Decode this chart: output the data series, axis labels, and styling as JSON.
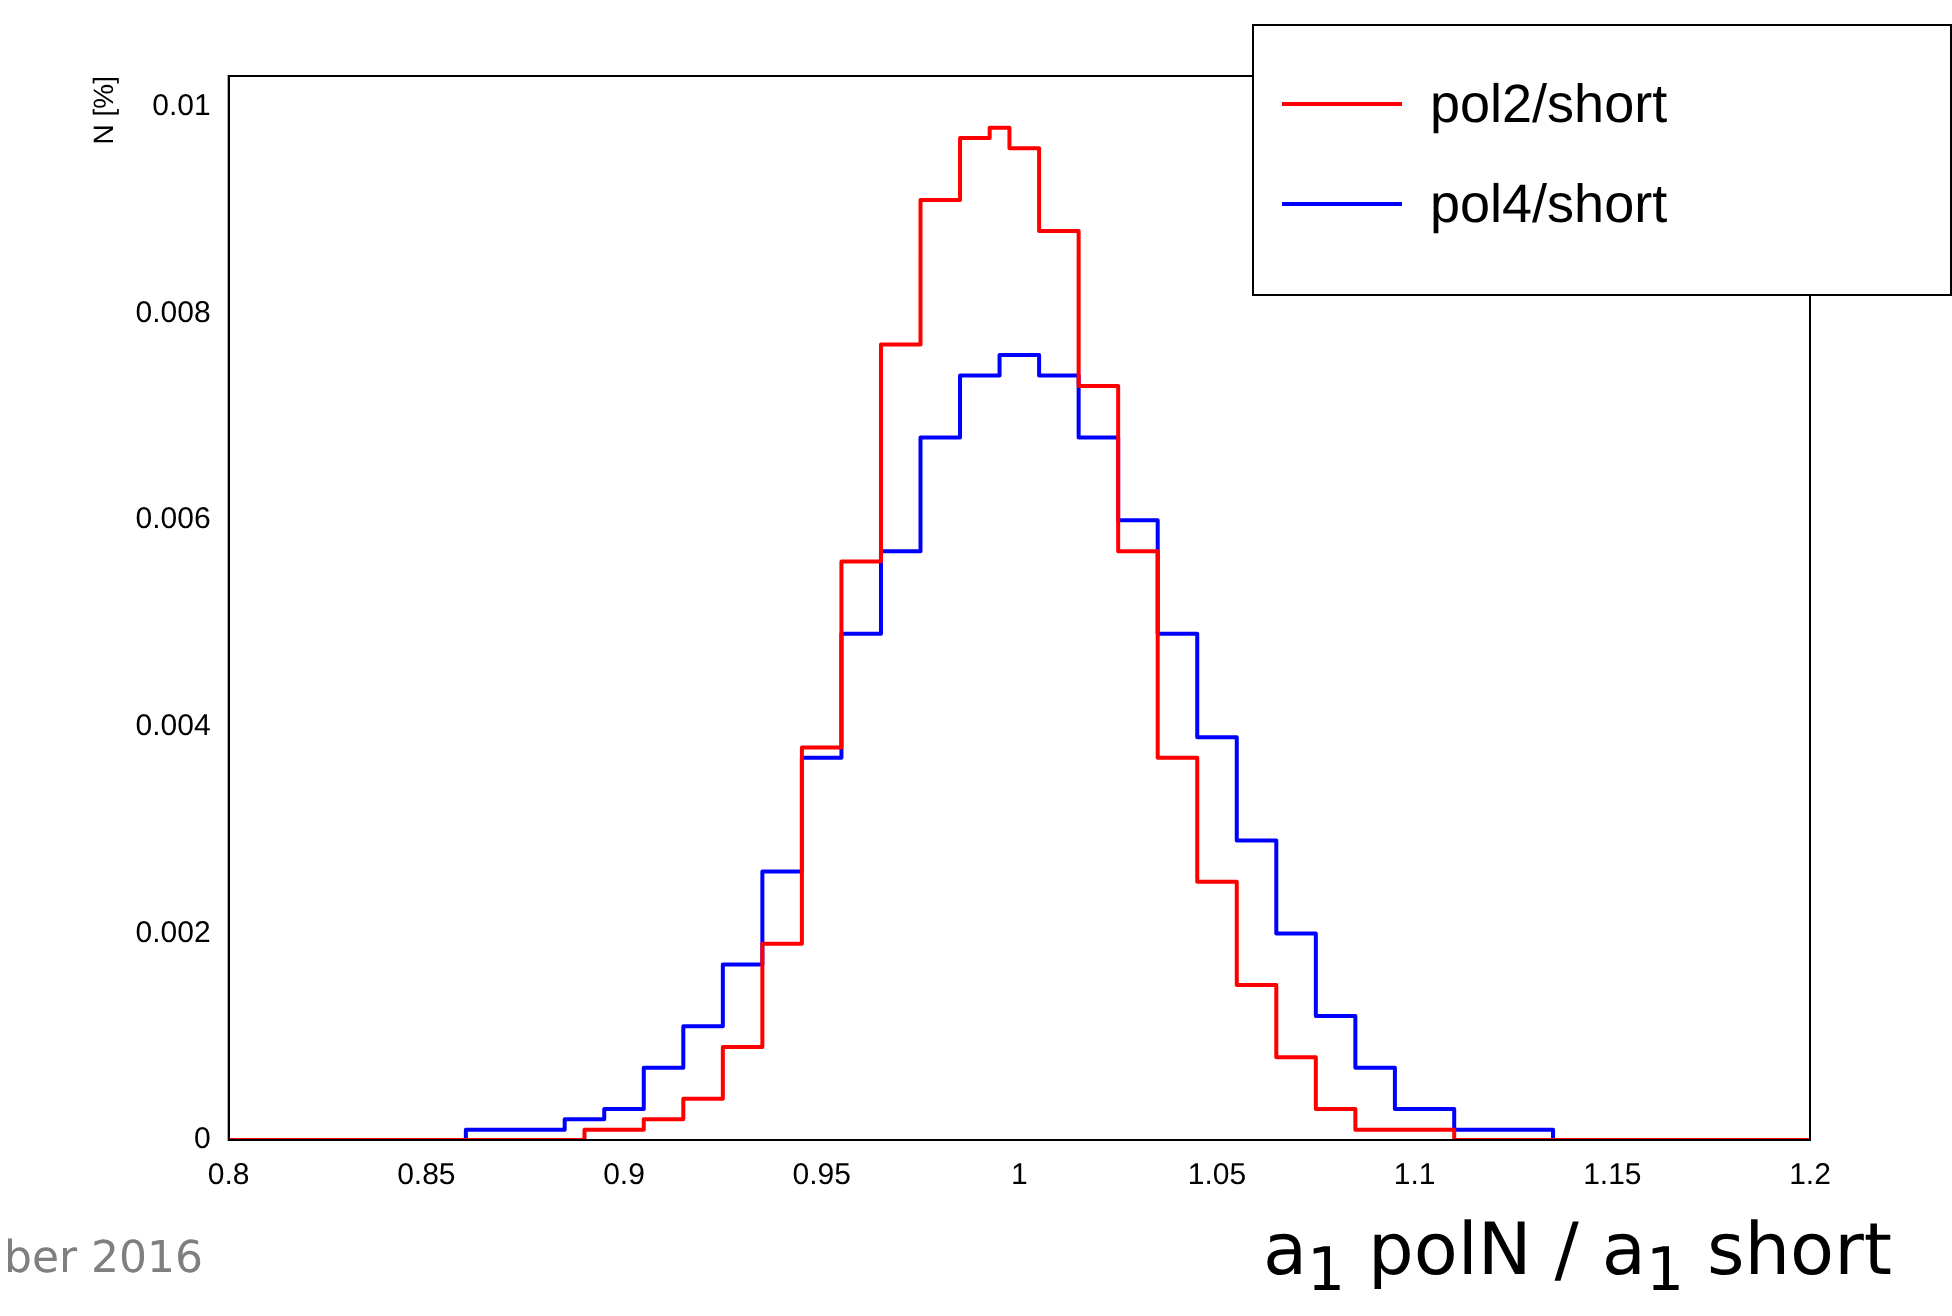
{
  "chart_data": {
    "type": "step",
    "xlabel": "a$_{1}$ polN / a$_{1}$ short",
    "ylabel": "N [%]",
    "xlim": [
      0.8,
      1.2
    ],
    "xticks": [
      0.8,
      0.85,
      0.9,
      0.95,
      1,
      1.05,
      1.1,
      1.15,
      1.2
    ],
    "ylim": [
      0,
      0.0103
    ],
    "yticks": [
      0,
      0.002,
      0.004,
      0.006,
      0.008,
      0.01
    ],
    "grid": false,
    "legend": "top right",
    "annotations": [
      "ber 2016"
    ],
    "series": [
      {
        "name": "pol2/short",
        "color": "#ff0000",
        "x": [
          0.8,
          0.86,
          0.88,
          0.9,
          0.91,
          0.92,
          0.93,
          0.94,
          0.95,
          0.96,
          0.97,
          0.98,
          0.99,
          0.995,
          1.0,
          1.01,
          1.02,
          1.03,
          1.04,
          1.05,
          1.06,
          1.07,
          1.08,
          1.09,
          1.1,
          1.12,
          1.2
        ],
        "values": [
          0,
          0,
          0,
          0.0001,
          0.0002,
          0.0004,
          0.0009,
          0.0019,
          0.0038,
          0.0056,
          0.0077,
          0.0091,
          0.0097,
          0.0098,
          0.0096,
          0.0088,
          0.0073,
          0.0057,
          0.0037,
          0.0025,
          0.0015,
          0.0008,
          0.0003,
          0.0001,
          0.0001,
          0,
          0
        ]
      },
      {
        "name": "pol4/short",
        "color": "#0000ff",
        "x": [
          0.8,
          0.85,
          0.87,
          0.88,
          0.89,
          0.9,
          0.91,
          0.92,
          0.93,
          0.94,
          0.95,
          0.96,
          0.97,
          0.98,
          0.99,
          1.0,
          1.01,
          1.02,
          1.03,
          1.04,
          1.05,
          1.06,
          1.07,
          1.08,
          1.09,
          1.1,
          1.12,
          1.15,
          1.2
        ],
        "values": [
          0,
          0,
          0.0001,
          0.0001,
          0.0002,
          0.0003,
          0.0007,
          0.0011,
          0.0017,
          0.0026,
          0.0037,
          0.0049,
          0.0057,
          0.0068,
          0.0074,
          0.0076,
          0.0074,
          0.0068,
          0.006,
          0.0049,
          0.0039,
          0.0029,
          0.002,
          0.0012,
          0.0007,
          0.0003,
          0.0001,
          0,
          0
        ]
      }
    ]
  }
}
